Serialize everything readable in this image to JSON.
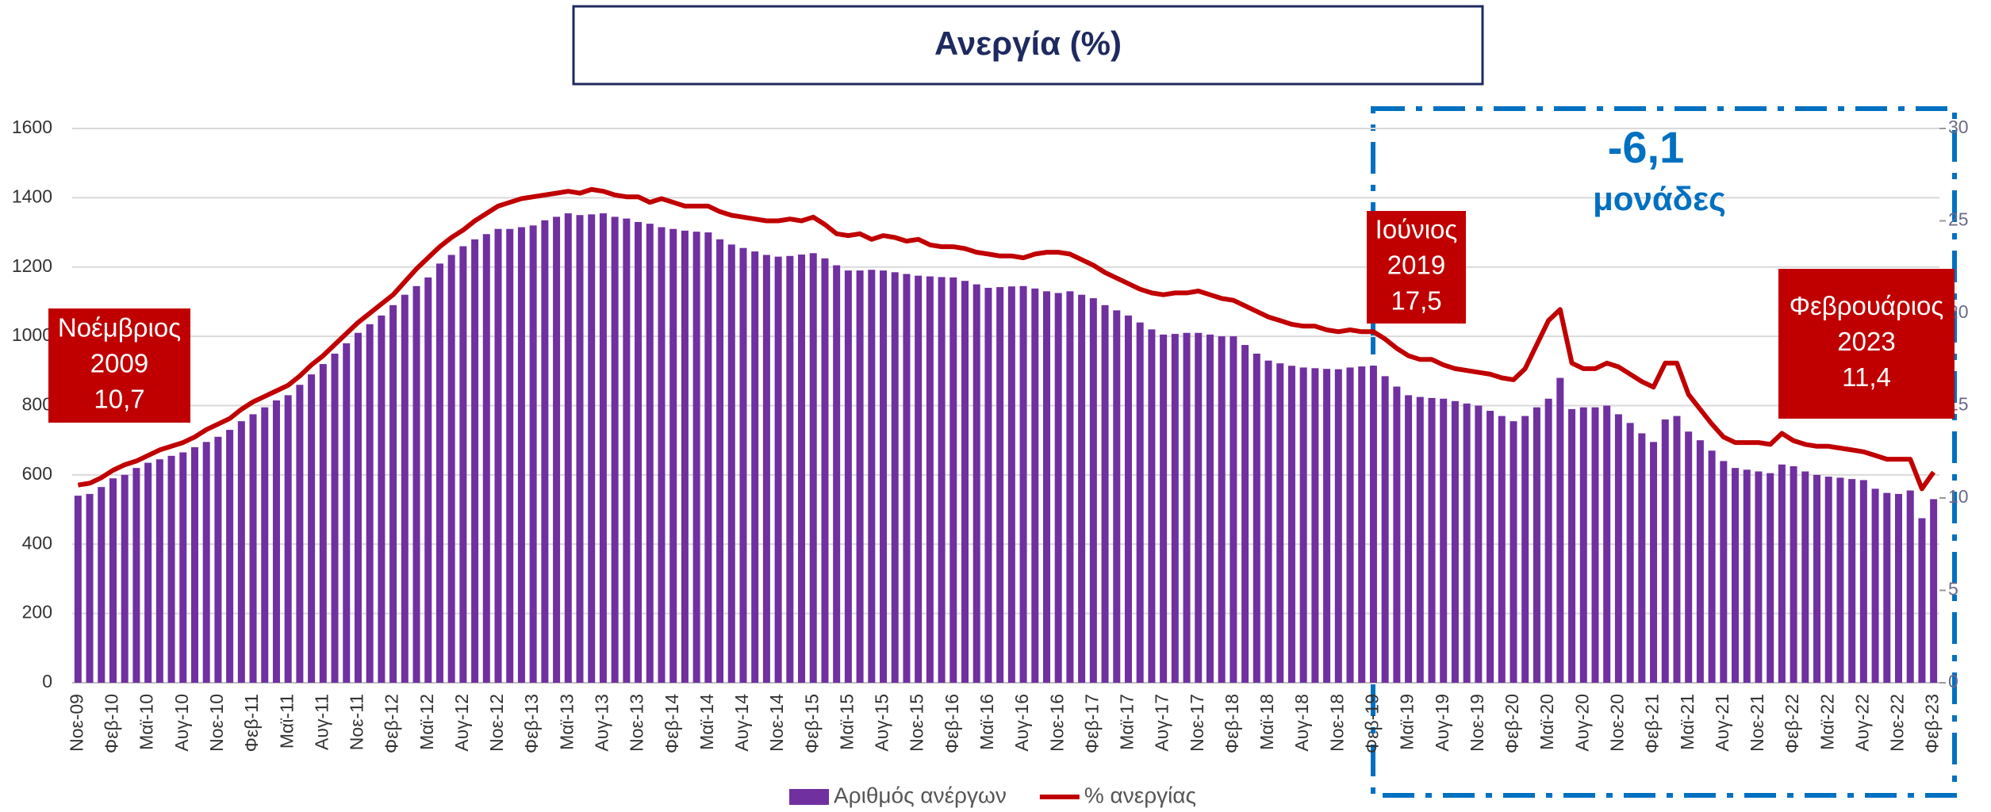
{
  "chart_data": {
    "type": "bar_line",
    "title": "Ανεργία (%)",
    "categories": [
      "Νοε-09",
      null,
      null,
      "Φεβ-10",
      null,
      null,
      "Μαϊ-10",
      null,
      null,
      "Αυγ-10",
      null,
      null,
      "Νοε-10",
      null,
      null,
      "Φεβ-11",
      null,
      null,
      "Μαϊ-11",
      null,
      null,
      "Αυγ-11",
      null,
      null,
      "Νοε-11",
      null,
      null,
      "Φεβ-12",
      null,
      null,
      "Μαϊ-12",
      null,
      null,
      "Αυγ-12",
      null,
      null,
      "Νοε-12",
      null,
      null,
      "Φεβ-13",
      null,
      null,
      "Μαϊ-13",
      null,
      null,
      "Αυγ-13",
      null,
      null,
      "Νοε-13",
      null,
      null,
      "Φεβ-14",
      null,
      null,
      "Μαϊ-14",
      null,
      null,
      "Αυγ-14",
      null,
      null,
      "Νοε-14",
      null,
      null,
      "Φεβ-15",
      null,
      null,
      "Μαϊ-15",
      null,
      null,
      "Αυγ-15",
      null,
      null,
      "Νοε-15",
      null,
      null,
      "Φεβ-16",
      null,
      null,
      "Μαϊ-16",
      null,
      null,
      "Αυγ-16",
      null,
      null,
      "Νοε-16",
      null,
      null,
      "Φεβ-17",
      null,
      null,
      "Μαϊ-17",
      null,
      null,
      "Αυγ-17",
      null,
      null,
      "Νοε-17",
      null,
      null,
      "Φεβ-18",
      null,
      null,
      "Μαϊ-18",
      null,
      null,
      "Αυγ-18",
      null,
      null,
      "Νοε-18",
      null,
      null,
      "Φεβ-19",
      null,
      null,
      "Μαϊ-19",
      null,
      null,
      "Αυγ-19",
      null,
      null,
      "Νοε-19",
      null,
      null,
      "Φεβ-20",
      null,
      null,
      "Μαϊ-20",
      null,
      null,
      "Αυγ-20",
      null,
      null,
      "Νοε-20",
      null,
      null,
      "Φεβ-21",
      null,
      null,
      "Μαϊ-21",
      null,
      null,
      "Αυγ-21",
      null,
      null,
      "Νοε-21",
      null,
      null,
      "Φεβ-22",
      null,
      null,
      "Μαϊ-22",
      null,
      null,
      "Αυγ-22",
      null,
      null,
      "Νοε-22",
      null,
      null,
      "Φεβ-23"
    ],
    "series": [
      {
        "name": "Αριθμός ανέργων",
        "type": "bar",
        "color": "#7030a0",
        "values": [
          540,
          545,
          565,
          590,
          600,
          620,
          635,
          645,
          655,
          665,
          680,
          695,
          710,
          730,
          755,
          775,
          795,
          815,
          830,
          860,
          890,
          920,
          950,
          980,
          1010,
          1035,
          1060,
          1090,
          1120,
          1145,
          1170,
          1210,
          1235,
          1260,
          1280,
          1295,
          1310,
          1310,
          1315,
          1320,
          1335,
          1345,
          1355,
          1350,
          1352,
          1355,
          1345,
          1340,
          1330,
          1325,
          1315,
          1310,
          1305,
          1302,
          1300,
          1280,
          1265,
          1255,
          1245,
          1235,
          1230,
          1232,
          1236,
          1240,
          1225,
          1205,
          1190,
          1190,
          1192,
          1190,
          1185,
          1180,
          1175,
          1173,
          1171,
          1170,
          1160,
          1150,
          1140,
          1142,
          1144,
          1145,
          1138,
          1130,
          1125,
          1130,
          1120,
          1110,
          1090,
          1075,
          1060,
          1040,
          1020,
          1005,
          1007,
          1010,
          1010,
          1005,
          1000,
          1000,
          975,
          950,
          930,
          922,
          915,
          910,
          908,
          906,
          905,
          910,
          913,
          915,
          885,
          855,
          830,
          825,
          822,
          820,
          813,
          806,
          800,
          785,
          770,
          755,
          770,
          795,
          820,
          880,
          790,
          795,
          795,
          800,
          775,
          750,
          720,
          695,
          760,
          770,
          725,
          700,
          670,
          640,
          620,
          615,
          610,
          605,
          630,
          625,
          610,
          600,
          595,
          592,
          588,
          585,
          560,
          548,
          545,
          555,
          475,
          530
        ]
      },
      {
        "name": "% ανεργίας",
        "type": "line",
        "axis": "y2",
        "color": "#c00000",
        "values": [
          10.7,
          10.8,
          11.1,
          11.5,
          11.8,
          12.0,
          12.3,
          12.6,
          12.8,
          13.0,
          13.3,
          13.7,
          14.0,
          14.3,
          14.8,
          15.2,
          15.5,
          15.8,
          16.1,
          16.6,
          17.2,
          17.7,
          18.3,
          18.9,
          19.5,
          20.0,
          20.5,
          21.0,
          21.7,
          22.4,
          23.0,
          23.6,
          24.1,
          24.5,
          25.0,
          25.4,
          25.8,
          26.0,
          26.2,
          26.3,
          26.4,
          26.5,
          26.6,
          26.5,
          26.7,
          26.6,
          26.4,
          26.3,
          26.3,
          26.0,
          26.2,
          26.0,
          25.8,
          25.8,
          25.8,
          25.5,
          25.3,
          25.2,
          25.1,
          25.0,
          25.0,
          25.1,
          25.0,
          25.2,
          24.8,
          24.3,
          24.2,
          24.3,
          24.0,
          24.2,
          24.1,
          23.9,
          24.0,
          23.7,
          23.6,
          23.6,
          23.5,
          23.3,
          23.2,
          23.1,
          23.1,
          23.0,
          23.2,
          23.3,
          23.3,
          23.2,
          22.9,
          22.6,
          22.2,
          21.9,
          21.6,
          21.3,
          21.1,
          21.0,
          21.1,
          21.1,
          21.2,
          21.0,
          20.8,
          20.7,
          20.4,
          20.1,
          19.8,
          19.6,
          19.4,
          19.3,
          19.3,
          19.1,
          19.0,
          19.1,
          19.0,
          19.0,
          18.6,
          18.1,
          17.7,
          17.5,
          17.5,
          17.2,
          17.0,
          16.9,
          16.8,
          16.7,
          16.5,
          16.4,
          17.0,
          18.3,
          19.6,
          20.2,
          17.3,
          17.0,
          17.0,
          17.3,
          17.1,
          16.7,
          16.3,
          16.0,
          17.3,
          17.3,
          15.6,
          14.8,
          14.0,
          13.3,
          13.0,
          13.0,
          13.0,
          12.9,
          13.5,
          13.1,
          12.9,
          12.8,
          12.8,
          12.7,
          12.6,
          12.5,
          12.3,
          12.1,
          12.1,
          12.1,
          10.5,
          11.4
        ]
      }
    ],
    "ylim": [
      0,
      1600
    ],
    "yticks": [
      0,
      200,
      400,
      600,
      800,
      1000,
      1200,
      1400,
      1600
    ],
    "y2lim": [
      0,
      30
    ],
    "y2ticks": [
      0,
      5,
      10,
      15,
      20,
      25,
      30
    ],
    "grid": true,
    "legend": "bottom",
    "annotations": [
      {
        "lines": [
          "Νοέμβριος",
          "2009",
          "10,7"
        ]
      },
      {
        "lines": [
          "Ιούνιος",
          "2019",
          "17,5"
        ]
      },
      {
        "lines": [
          "Φεβρουάριος",
          "2023",
          "11,4"
        ]
      }
    ],
    "highlight": {
      "lines": [
        "-6,1",
        "μονάδες"
      ]
    }
  }
}
